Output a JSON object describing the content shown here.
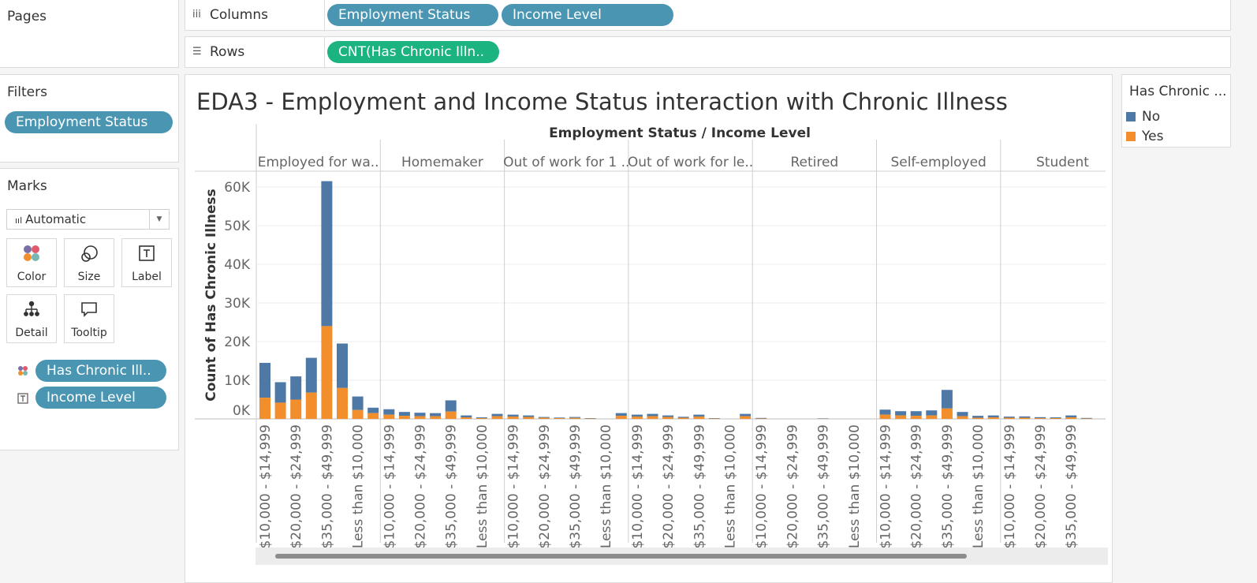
{
  "pages": {
    "title": "Pages"
  },
  "filters": {
    "title": "Filters",
    "pill": "Employment Status"
  },
  "marks": {
    "title": "Marks",
    "mark_type": "Automatic",
    "buttons": [
      "Color",
      "Size",
      "Label",
      "Detail",
      "Tooltip"
    ],
    "fields": [
      "Has Chronic Ill..",
      "Income Level"
    ]
  },
  "shelves": {
    "columns_label": "Columns",
    "columns_pills": [
      "Employment Status",
      "Income Level"
    ],
    "rows_label": "Rows",
    "rows_pill": "CNT(Has Chronic Illn.."
  },
  "legend": {
    "title": "Has Chronic ...",
    "items": [
      {
        "label": "No",
        "color": "#4e79a7"
      },
      {
        "label": "Yes",
        "color": "#f28e2b"
      }
    ]
  },
  "chart_data": {
    "type": "bar",
    "stacked": true,
    "title": "EDA3 - Employment and Income Status interaction with Chronic Illness",
    "column_header": "Employment Status  /  Income Level",
    "ylabel": "Count of Has Chronic Illness",
    "ylim": [
      0,
      63000
    ],
    "yticks": [
      "0K",
      "10K",
      "20K",
      "30K",
      "40K",
      "50K",
      "60K"
    ],
    "series_names": [
      "No",
      "Yes"
    ],
    "colors": {
      "No": "#4e79a7",
      "Yes": "#f28e2b"
    },
    "groups": [
      {
        "name": "Employed for wa..",
        "bars": [
          {
            "label": "$10,000 - $14,999",
            "yes": 5500,
            "no": 9000
          },
          {
            "label": "",
            "yes": 4200,
            "no": 5300
          },
          {
            "label": "$20,000 - $24,999",
            "yes": 5000,
            "no": 6000
          },
          {
            "label": "",
            "yes": 6800,
            "no": 9000
          },
          {
            "label": "$35,000 - $49,999",
            "yes": 24000,
            "no": 37500
          },
          {
            "label": "",
            "yes": 8000,
            "no": 11500
          },
          {
            "label": "Less than $10,000",
            "yes": 2300,
            "no": 3500
          },
          {
            "label": "",
            "yes": 1500,
            "no": 1400
          }
        ]
      },
      {
        "name": "Homemaker",
        "bars": [
          {
            "label": "$10,000 - $14,999",
            "yes": 1100,
            "no": 1400
          },
          {
            "label": "",
            "yes": 800,
            "no": 1000
          },
          {
            "label": "$20,000 - $24,999",
            "yes": 700,
            "no": 900
          },
          {
            "label": "",
            "yes": 700,
            "no": 800
          },
          {
            "label": "$35,000 - $49,999",
            "yes": 1900,
            "no": 2900
          },
          {
            "label": "",
            "yes": 400,
            "no": 500
          },
          {
            "label": "Less than $10,000",
            "yes": 200,
            "no": 200
          },
          {
            "label": "",
            "yes": 700,
            "no": 600
          }
        ]
      },
      {
        "name": "Out of work for 1 ..",
        "bars": [
          {
            "label": "$10,000 - $14,999",
            "yes": 600,
            "no": 500
          },
          {
            "label": "",
            "yes": 500,
            "no": 400
          },
          {
            "label": "$20,000 - $24,999",
            "yes": 300,
            "no": 200
          },
          {
            "label": "",
            "yes": 200,
            "no": 150
          },
          {
            "label": "$35,000 - $49,999",
            "yes": 250,
            "no": 250
          },
          {
            "label": "",
            "yes": 100,
            "no": 100
          },
          {
            "label": "Less than $10,000",
            "yes": 0,
            "no": 0
          },
          {
            "label": "",
            "yes": 800,
            "no": 700
          }
        ]
      },
      {
        "name": "Out of work for le..",
        "bars": [
          {
            "label": "$10,000 - $14,999",
            "yes": 600,
            "no": 500
          },
          {
            "label": "",
            "yes": 700,
            "no": 600
          },
          {
            "label": "$20,000 - $24,999",
            "yes": 500,
            "no": 400
          },
          {
            "label": "",
            "yes": 300,
            "no": 250
          },
          {
            "label": "$35,000 - $49,999",
            "yes": 600,
            "no": 500
          },
          {
            "label": "",
            "yes": 100,
            "no": 100
          },
          {
            "label": "Less than $10,000",
            "yes": 0,
            "no": 0
          },
          {
            "label": "",
            "yes": 700,
            "no": 600
          }
        ]
      },
      {
        "name": "Retired",
        "bars": [
          {
            "label": "$10,000 - $14,999",
            "yes": 100,
            "no": 150
          },
          {
            "label": "",
            "yes": 0,
            "no": 0
          },
          {
            "label": "$20,000 - $24,999",
            "yes": 0,
            "no": 0
          },
          {
            "label": "",
            "yes": 0,
            "no": 0
          },
          {
            "label": "$35,000 - $49,999",
            "yes": 50,
            "no": 100
          },
          {
            "label": "",
            "yes": 0,
            "no": 0
          },
          {
            "label": "Less than $10,000",
            "yes": 0,
            "no": 0
          },
          {
            "label": "",
            "yes": 0,
            "no": 0
          }
        ]
      },
      {
        "name": "Self-employed",
        "bars": [
          {
            "label": "$10,000 - $14,999",
            "yes": 1100,
            "no": 1300
          },
          {
            "label": "",
            "yes": 900,
            "no": 1100
          },
          {
            "label": "$20,000 - $24,999",
            "yes": 800,
            "no": 1200
          },
          {
            "label": "",
            "yes": 900,
            "no": 1300
          },
          {
            "label": "$35,000 - $49,999",
            "yes": 2700,
            "no": 4800
          },
          {
            "label": "",
            "yes": 700,
            "no": 1100
          },
          {
            "label": "Less than $10,000",
            "yes": 300,
            "no": 500
          },
          {
            "label": "",
            "yes": 400,
            "no": 500
          }
        ]
      },
      {
        "name": "Student",
        "bars": [
          {
            "label": "$10,000 - $14,999",
            "yes": 300,
            "no": 300
          },
          {
            "label": "",
            "yes": 300,
            "no": 350
          },
          {
            "label": "$20,000 - $24,999",
            "yes": 200,
            "no": 250
          },
          {
            "label": "",
            "yes": 200,
            "no": 200
          },
          {
            "label": "$35,000 - $49,999",
            "yes": 400,
            "no": 500
          },
          {
            "label": "",
            "yes": 100,
            "no": 150
          }
        ]
      }
    ]
  }
}
